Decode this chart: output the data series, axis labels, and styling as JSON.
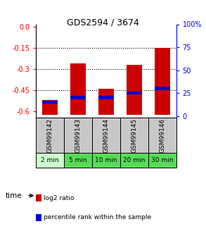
{
  "title": "GDS2594 / 3674",
  "samples": [
    "GSM99142",
    "GSM99143",
    "GSM99144",
    "GSM99145",
    "GSM99146"
  ],
  "time_labels": [
    "2 min",
    "5 min",
    "10 min",
    "20 min",
    "30 min"
  ],
  "log2_values": [
    -0.52,
    -0.26,
    -0.44,
    -0.27,
    -0.15
  ],
  "percentile_values": [
    15,
    20,
    20,
    25,
    30
  ],
  "bar_bottom": -0.63,
  "ylim_left": [
    -0.65,
    0.02
  ],
  "ylim_right": [
    -2.167,
    100
  ],
  "yticks_left": [
    0.0,
    -0.15,
    -0.3,
    -0.45,
    -0.6
  ],
  "yticks_right": [
    0,
    25,
    50,
    75,
    100
  ],
  "bar_color": "#cc0000",
  "percentile_color": "#0000cc",
  "bg_color_samples": "#c8c8c8",
  "bg_color_time_light": "#ccffcc",
  "bg_color_time_dark": "#55dd55",
  "bar_width": 0.55,
  "legend_red": "log2 ratio",
  "legend_blue": "percentile rank within the sample",
  "title_fontsize": 9,
  "tick_fontsize": 7,
  "label_fontsize": 6.5
}
